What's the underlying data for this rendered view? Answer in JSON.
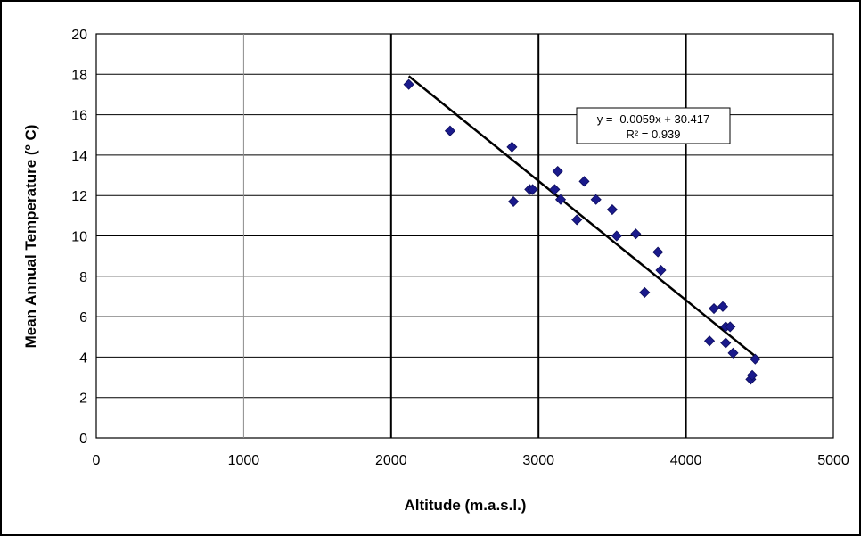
{
  "chart_data": {
    "type": "scatter",
    "title": "",
    "xlabel": "Altitude (m.a.s.l.)",
    "ylabel": "Mean Annual Temperature (º C)",
    "xlim": [
      0,
      5000
    ],
    "ylim": [
      0,
      20
    ],
    "xticks": [
      "0",
      "1000",
      "2000",
      "3000",
      "4000",
      "5000"
    ],
    "yticks": [
      "0",
      "2",
      "4",
      "6",
      "8",
      "10",
      "12",
      "14",
      "16",
      "18",
      "20"
    ],
    "grid": true,
    "legend": "none",
    "marker": "diamond",
    "colors": {
      "points": "#1a1a8c",
      "trendline": "#000000",
      "gridline": "#000000",
      "minor_gridline": "#8c8c8c"
    },
    "points": [
      {
        "x": 2120,
        "y": 17.5
      },
      {
        "x": 2400,
        "y": 15.2
      },
      {
        "x": 2820,
        "y": 14.4
      },
      {
        "x": 2830,
        "y": 11.7
      },
      {
        "x": 2940,
        "y": 12.3
      },
      {
        "x": 2960,
        "y": 12.3
      },
      {
        "x": 3110,
        "y": 12.3
      },
      {
        "x": 3130,
        "y": 13.2
      },
      {
        "x": 3150,
        "y": 11.8
      },
      {
        "x": 3260,
        "y": 10.8
      },
      {
        "x": 3310,
        "y": 12.7
      },
      {
        "x": 3390,
        "y": 11.8
      },
      {
        "x": 3500,
        "y": 11.3
      },
      {
        "x": 3530,
        "y": 10.0
      },
      {
        "x": 3660,
        "y": 10.1
      },
      {
        "x": 3720,
        "y": 7.2
      },
      {
        "x": 3810,
        "y": 9.2
      },
      {
        "x": 3830,
        "y": 8.3
      },
      {
        "x": 4160,
        "y": 4.8
      },
      {
        "x": 4190,
        "y": 6.4
      },
      {
        "x": 4250,
        "y": 6.5
      },
      {
        "x": 4270,
        "y": 4.7
      },
      {
        "x": 4270,
        "y": 5.5
      },
      {
        "x": 4300,
        "y": 5.5
      },
      {
        "x": 4320,
        "y": 4.2
      },
      {
        "x": 4440,
        "y": 2.9
      },
      {
        "x": 4450,
        "y": 3.1
      },
      {
        "x": 4470,
        "y": 3.9
      }
    ],
    "trendline": {
      "slope": -0.0059,
      "intercept": 30.417,
      "x_range": [
        2120,
        4470
      ],
      "equation_label": "y = -0.0059x + 30.417",
      "r2_label": "R² = 0.939"
    }
  }
}
